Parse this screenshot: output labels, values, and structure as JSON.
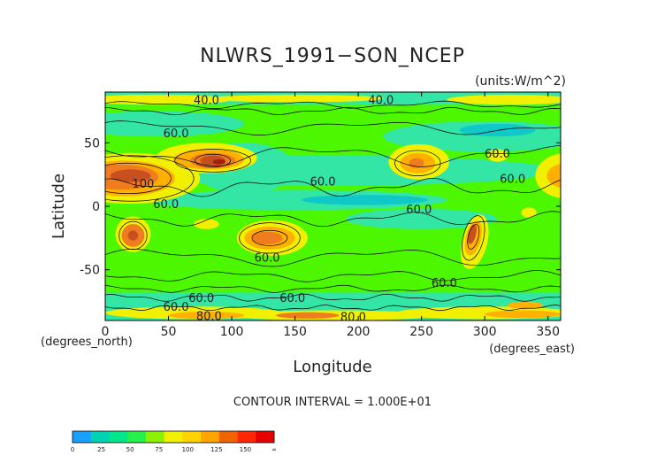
{
  "chart_data": {
    "type": "contour",
    "title": "NLWRS_1991−SON_NCEP",
    "units": "(units:W/m^2)",
    "xlabel": "Longitude",
    "ylabel": "Latitude",
    "x_unit_label": "(degrees_east)",
    "y_unit_label": "(degrees_north)",
    "xlim": [
      0,
      360
    ],
    "ylim": [
      -90,
      90
    ],
    "x_ticks": [
      0,
      50,
      100,
      150,
      200,
      250,
      300,
      350
    ],
    "y_ticks": [
      50,
      0,
      -50
    ],
    "contour_interval": "CONTOUR INTERVAL = 1.000E+01",
    "contour_labels": [
      {
        "text": "40.0",
        "lon": 80,
        "lat": 84
      },
      {
        "text": "40.0",
        "lon": 218,
        "lat": 84
      },
      {
        "text": "60.0",
        "lon": 56,
        "lat": 58
      },
      {
        "text": "60.0",
        "lon": 310,
        "lat": 42
      },
      {
        "text": "60.0",
        "lon": 322,
        "lat": 22
      },
      {
        "text": "60.0",
        "lon": 172,
        "lat": 20
      },
      {
        "text": "100",
        "lon": 30,
        "lat": 18
      },
      {
        "text": "60.0",
        "lon": 48,
        "lat": 2
      },
      {
        "text": "60.0",
        "lon": 248,
        "lat": -2
      },
      {
        "text": "60.0",
        "lon": 128,
        "lat": -40
      },
      {
        "text": "60.0",
        "lon": 268,
        "lat": -60
      },
      {
        "text": "60.0",
        "lon": 76,
        "lat": -72
      },
      {
        "text": "60.0",
        "lon": 148,
        "lat": -72
      },
      {
        "text": "60.0",
        "lon": 56,
        "lat": -79
      },
      {
        "text": "80.0",
        "lon": 82,
        "lat": -86
      },
      {
        "text": "80.0",
        "lon": 196,
        "lat": -87
      }
    ],
    "colorbar": {
      "ticks": [
        "0",
        "25",
        "50",
        "75",
        "100",
        "125",
        "150",
        "∞"
      ],
      "colors": [
        "#1a9fff",
        "#00d2b4",
        "#00e68c",
        "#28f04b",
        "#8cf000",
        "#f0f000",
        "#ffd200",
        "#ffa500",
        "#f06400",
        "#ff2800",
        "#e60000"
      ]
    },
    "field_colors": {
      "background": "#4df700",
      "cyan": "#33e6a6",
      "teal": "#10c8c8",
      "yellow": "#f0f000",
      "orange": "#ffb000",
      "darkorange": "#f07c20",
      "brown": "#c85020",
      "darkred": "#a02010"
    }
  }
}
